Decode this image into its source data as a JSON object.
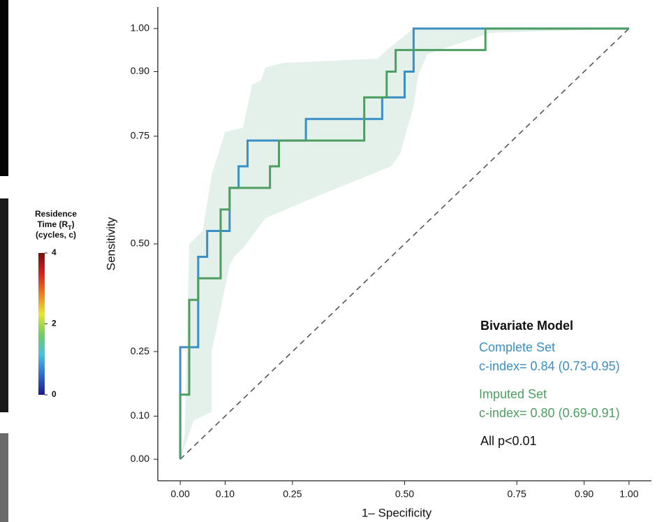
{
  "chart_data": {
    "type": "line",
    "xlabel": "1– Specificity",
    "ylabel": "Sensitivity",
    "xlim": [
      -0.05,
      1.05
    ],
    "ylim": [
      -0.05,
      1.05
    ],
    "xticks": [
      {
        "value": 0,
        "label": "0.00"
      },
      {
        "value": 0.1,
        "label": "0.10"
      },
      {
        "value": 0.25,
        "label": "0.25"
      },
      {
        "value": 0.5,
        "label": "0.50"
      },
      {
        "value": 0.75,
        "label": "0.75"
      },
      {
        "value": 0.9,
        "label": "0.90"
      },
      {
        "value": 1,
        "label": "1.00"
      }
    ],
    "yticks": [
      {
        "value": 0,
        "label": "0.00"
      },
      {
        "value": 0.1,
        "label": "0.10"
      },
      {
        "value": 0.25,
        "label": "0.25"
      },
      {
        "value": 0.5,
        "label": "0.50"
      },
      {
        "value": 0.75,
        "label": "0.75"
      },
      {
        "value": 0.9,
        "label": "0.90"
      },
      {
        "value": 1,
        "label": "1.00"
      }
    ],
    "reference_diagonal": true,
    "legend_title": "Bivariate Model",
    "legend_footer": "All p<0.01",
    "confidence_band": {
      "color": "#e3f1ea",
      "upper_x": [
        0.01,
        0.02,
        0.05,
        0.07,
        0.1,
        0.14,
        0.15,
        0.16,
        0.18,
        0.19,
        0.23,
        0.44,
        0.46,
        0.52,
        1.0
      ],
      "upper_y": [
        0.06,
        0.5,
        0.53,
        0.66,
        0.76,
        0.77,
        0.82,
        0.87,
        0.88,
        0.91,
        0.92,
        0.93,
        0.95,
        1.0,
        1.0
      ],
      "lower_x": [
        1.0,
        0.69,
        0.55,
        0.53,
        0.52,
        0.49,
        0.47,
        0.28,
        0.19,
        0.14,
        0.12,
        0.11,
        0.07,
        0.07,
        0.03,
        0.02,
        0.0
      ],
      "lower_y": [
        1.0,
        0.99,
        0.94,
        0.89,
        0.82,
        0.71,
        0.68,
        0.6,
        0.56,
        0.49,
        0.47,
        0.45,
        0.25,
        0.11,
        0.09,
        0.06,
        0.0
      ]
    },
    "series": [
      {
        "name": "Complete Set",
        "legend_detail": "c-index= 0.84 (0.73-0.95)",
        "color": "#3a8fc4",
        "x": [
          0,
          0,
          0.04,
          0.04,
          0.06,
          0.06,
          0.11,
          0.11,
          0.13,
          0.13,
          0.15,
          0.15,
          0.28,
          0.28,
          0.45,
          0.45,
          0.5,
          0.5,
          0.52,
          0.52,
          1.0
        ],
        "values": [
          0,
          0.26,
          0.26,
          0.47,
          0.47,
          0.53,
          0.53,
          0.63,
          0.63,
          0.68,
          0.68,
          0.74,
          0.74,
          0.79,
          0.79,
          0.84,
          0.84,
          0.9,
          0.9,
          1.0,
          1.0
        ]
      },
      {
        "name": "Imputed Set",
        "legend_detail": "c-index= 0.80 (0.69-0.91)",
        "color": "#4e9e62",
        "x": [
          0,
          0,
          0.02,
          0.02,
          0.04,
          0.04,
          0.09,
          0.09,
          0.11,
          0.11,
          0.2,
          0.2,
          0.22,
          0.22,
          0.41,
          0.41,
          0.46,
          0.46,
          0.48,
          0.48,
          0.68,
          0.68,
          1.0
        ],
        "values": [
          0,
          0.15,
          0.15,
          0.37,
          0.37,
          0.42,
          0.42,
          0.58,
          0.58,
          0.63,
          0.63,
          0.68,
          0.68,
          0.74,
          0.74,
          0.84,
          0.84,
          0.9,
          0.9,
          0.95,
          0.95,
          1.0,
          1.0
        ]
      }
    ]
  },
  "colorbar": {
    "title_lines": [
      "Residence",
      [
        "Time (R",
        "T",
        ")"
      ],
      "(cycles, c)"
    ],
    "lim": [
      0,
      4
    ],
    "ticks": [
      0,
      2,
      4
    ],
    "colors": [
      "#1a1a8c",
      "#2a6fd6",
      "#45c4e0",
      "#6fcf5a",
      "#e8e82a",
      "#f07a1a",
      "#d42020",
      "#7a0d0d"
    ]
  }
}
